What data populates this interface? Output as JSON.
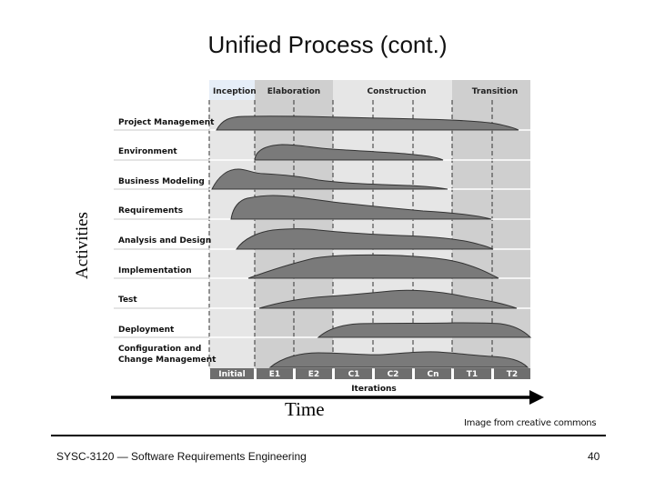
{
  "title": "Unified Process (cont.)",
  "y_axis_label": "Activities",
  "x_axis_label": "Time",
  "image_credit": "Image from creative commons",
  "footer": {
    "course": "SYSC-3120 — Software Requirements Engineering",
    "page": "40"
  },
  "phases": [
    {
      "name": "Inception",
      "fill": "#e6eef8"
    },
    {
      "name": "Elaboration",
      "fill": "#cfcfcf"
    },
    {
      "name": "Construction",
      "fill": "#e6e6e6"
    },
    {
      "name": "Transition",
      "fill": "#cfcfcf"
    }
  ],
  "iterations": [
    "Initial",
    "E1",
    "E2",
    "C1",
    "C2",
    "Cn",
    "T1",
    "T2"
  ],
  "iterations_label": "Iterations",
  "activities": [
    "Project Management",
    "Environment",
    "Business Modeling",
    "Requirements",
    "Analysis and Design",
    "Implementation",
    "Test",
    "Deployment",
    "Configuration and Change Management"
  ],
  "colors": {
    "hump_fill": "#7a7a7a",
    "hump_stroke": "#333333",
    "iteration_bar": "#6e6e6e",
    "arrow": "#000000"
  }
}
